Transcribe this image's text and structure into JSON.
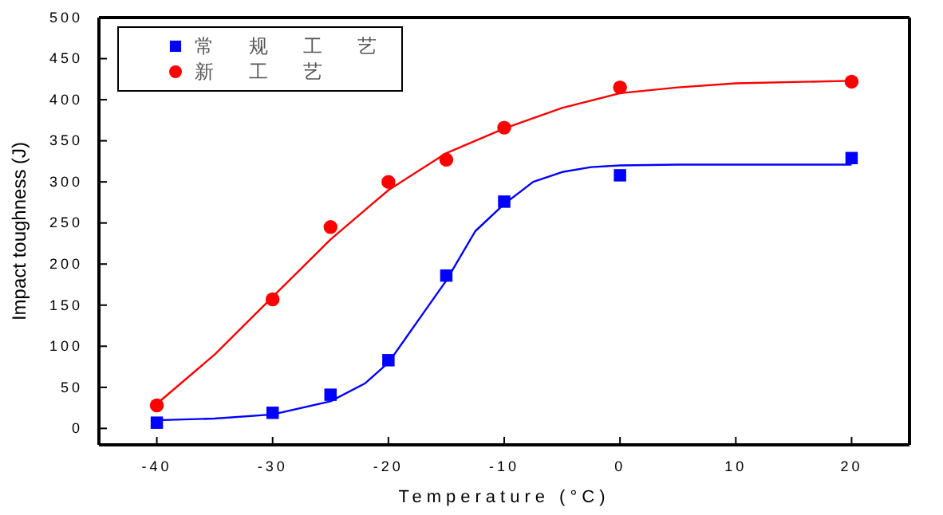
{
  "chart_data": {
    "type": "scatter",
    "xlabel": "Temperature (°C)",
    "ylabel": "Impact toughness (J)",
    "xlim": [
      -45,
      25
    ],
    "ylim": [
      -20,
      500
    ],
    "xticks": [
      -40,
      -30,
      -20,
      -10,
      0,
      10,
      20
    ],
    "yticks": [
      0,
      50,
      100,
      150,
      200,
      250,
      300,
      350,
      400,
      450,
      500
    ],
    "legend": "top left",
    "grid": false,
    "series": [
      {
        "name": "常规工艺",
        "marker": "square",
        "color": "#0000ff",
        "x": [
          -40,
          -30,
          -25,
          -20,
          -15,
          -10,
          0,
          20
        ],
        "values": [
          7,
          19,
          41,
          83,
          186,
          276,
          308,
          329
        ]
      },
      {
        "name": "新工艺",
        "marker": "circle",
        "color": "#ff0000",
        "x": [
          -40,
          -30,
          -25,
          -20,
          -15,
          -10,
          0,
          20
        ],
        "values": [
          28,
          157,
          245,
          300,
          327,
          366,
          415,
          422
        ]
      },
      {
        "type": "line",
        "marker": "none",
        "color": "#0000ff",
        "x": [
          -40,
          -35,
          -30,
          -25,
          -22,
          -20,
          -17.5,
          -15,
          -12.5,
          -10,
          -7.5,
          -5,
          -2.5,
          0,
          5,
          20
        ],
        "values": [
          10,
          12,
          17,
          33,
          55,
          80,
          130,
          180,
          240,
          273,
          300,
          312,
          318,
          320,
          321,
          321
        ]
      },
      {
        "type": "line",
        "marker": "none",
        "color": "#ff0000",
        "x": [
          -40,
          -35,
          -30,
          -25,
          -20,
          -15,
          -12.5,
          -10,
          -5,
          0,
          5,
          10,
          20
        ],
        "values": [
          30,
          90,
          160,
          230,
          290,
          335,
          350,
          365,
          390,
          408,
          415,
          420,
          423
        ]
      }
    ]
  }
}
